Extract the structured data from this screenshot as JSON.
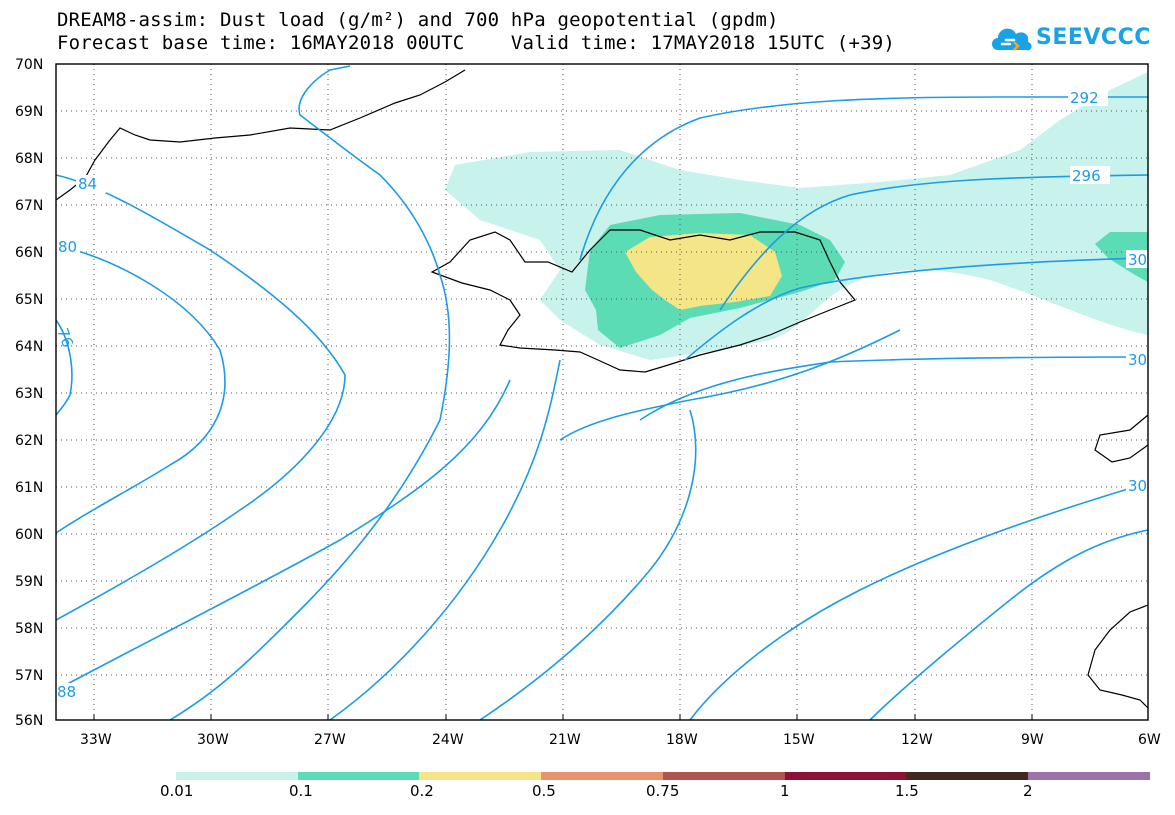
{
  "header": {
    "title_line1": "DREAM8-assim: Dust load (g/m²) and 700 hPa geopotential (gpdm)",
    "title_line2": "Forecast base time: 16MAY2018 00UTC    Valid time: 17MAY2018 15UTC (+39)"
  },
  "logo": {
    "text": "SEEVCCC",
    "icon": "cloud-icon",
    "color": "#1ba2e6"
  },
  "map": {
    "lat_labels": [
      "70N",
      "69N",
      "68N",
      "67N",
      "66N",
      "65N",
      "64N",
      "63N",
      "62N",
      "61N",
      "60N",
      "59N",
      "58N",
      "57N",
      "56N"
    ],
    "lon_labels": [
      "33W",
      "30W",
      "27W",
      "24W",
      "21W",
      "18W",
      "15W",
      "12W",
      "9W",
      "6W"
    ],
    "contour_labels": [
      "292",
      "296",
      "30",
      "30",
      "30",
      "84",
      "80",
      "76",
      "88"
    ],
    "contour_color": "#1e9be6"
  },
  "colorbar": {
    "labels": [
      "0.01",
      "0.1",
      "0.2",
      "0.5",
      "0.75",
      "1",
      "1.5",
      "2"
    ],
    "colors": [
      "#c8f2ec",
      "#5bdcb4",
      "#f4e586",
      "#e7936e",
      "#ad5550",
      "#8e1236",
      "#43281e",
      "#9b73a8"
    ]
  }
}
